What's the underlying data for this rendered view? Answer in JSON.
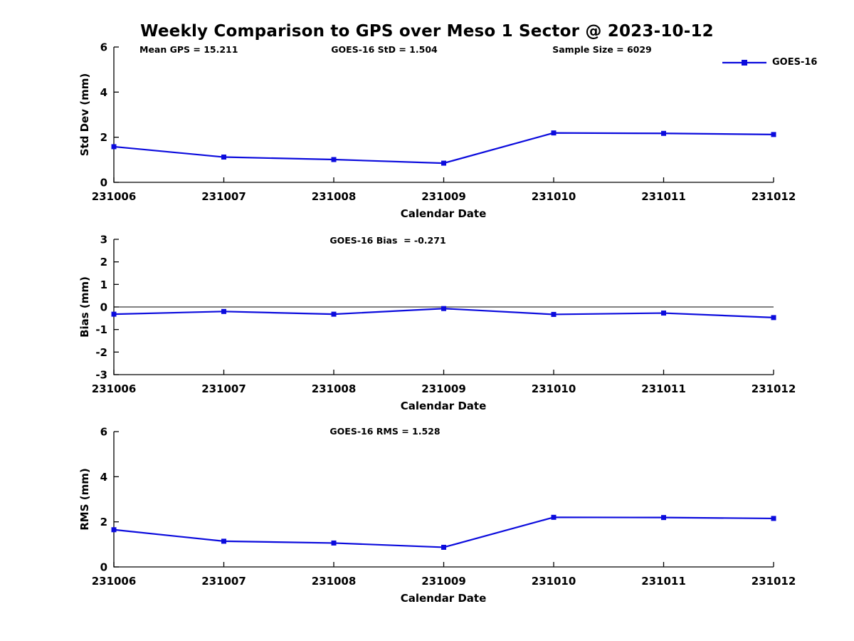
{
  "title": "Weekly Comparison to GPS over Meso 1 Sector @ 2023-10-12",
  "legend": {
    "label": "GOES-16",
    "position": "top-right",
    "box": false
  },
  "colors": {
    "series": "#0b0bdd",
    "axis": "#000000",
    "zero_line": "#000000",
    "background": "#ffffff",
    "text": "#000000"
  },
  "chart_data": [
    {
      "id": "std-dev",
      "type": "line",
      "annotations": [
        {
          "text": "Mean GPS = 15.211"
        },
        {
          "text": "GOES-16 StD = 1.504"
        },
        {
          "text": "Sample Size = 6029"
        }
      ],
      "x": [
        231006,
        231007,
        231008,
        231009,
        231010,
        231011,
        231012
      ],
      "series": [
        {
          "name": "GOES-16",
          "values": [
            1.58,
            1.12,
            1.01,
            0.85,
            2.19,
            2.17,
            2.12
          ]
        }
      ],
      "xlabel": "Calendar Date",
      "ylabel": "Std Dev (mm)",
      "ylim": [
        0,
        6
      ],
      "yticks": [
        0,
        2,
        4,
        6
      ],
      "zero_line": false,
      "grid": false,
      "marker": "square"
    },
    {
      "id": "bias",
      "type": "line",
      "annotations": [
        {
          "text": "GOES-16 Bias  = -0.271"
        }
      ],
      "x": [
        231006,
        231007,
        231008,
        231009,
        231010,
        231011,
        231012
      ],
      "series": [
        {
          "name": "GOES-16",
          "values": [
            -0.32,
            -0.2,
            -0.32,
            -0.07,
            -0.33,
            -0.27,
            -0.47
          ]
        }
      ],
      "xlabel": "Calendar Date",
      "ylabel": "Bias (mm)",
      "ylim": [
        -3,
        3
      ],
      "yticks": [
        -3,
        -2,
        -1,
        0,
        1,
        2,
        3
      ],
      "zero_line": true,
      "grid": false,
      "marker": "square"
    },
    {
      "id": "rms",
      "type": "line",
      "annotations": [
        {
          "text": "GOES-16 RMS = 1.528"
        }
      ],
      "x": [
        231006,
        231007,
        231008,
        231009,
        231010,
        231011,
        231012
      ],
      "series": [
        {
          "name": "GOES-16",
          "values": [
            1.65,
            1.14,
            1.06,
            0.87,
            2.2,
            2.19,
            2.15
          ]
        }
      ],
      "xlabel": "Calendar Date",
      "ylabel": "RMS (mm)",
      "ylim": [
        0,
        6
      ],
      "yticks": [
        0,
        2,
        4,
        6
      ],
      "zero_line": false,
      "grid": false,
      "marker": "square"
    }
  ]
}
